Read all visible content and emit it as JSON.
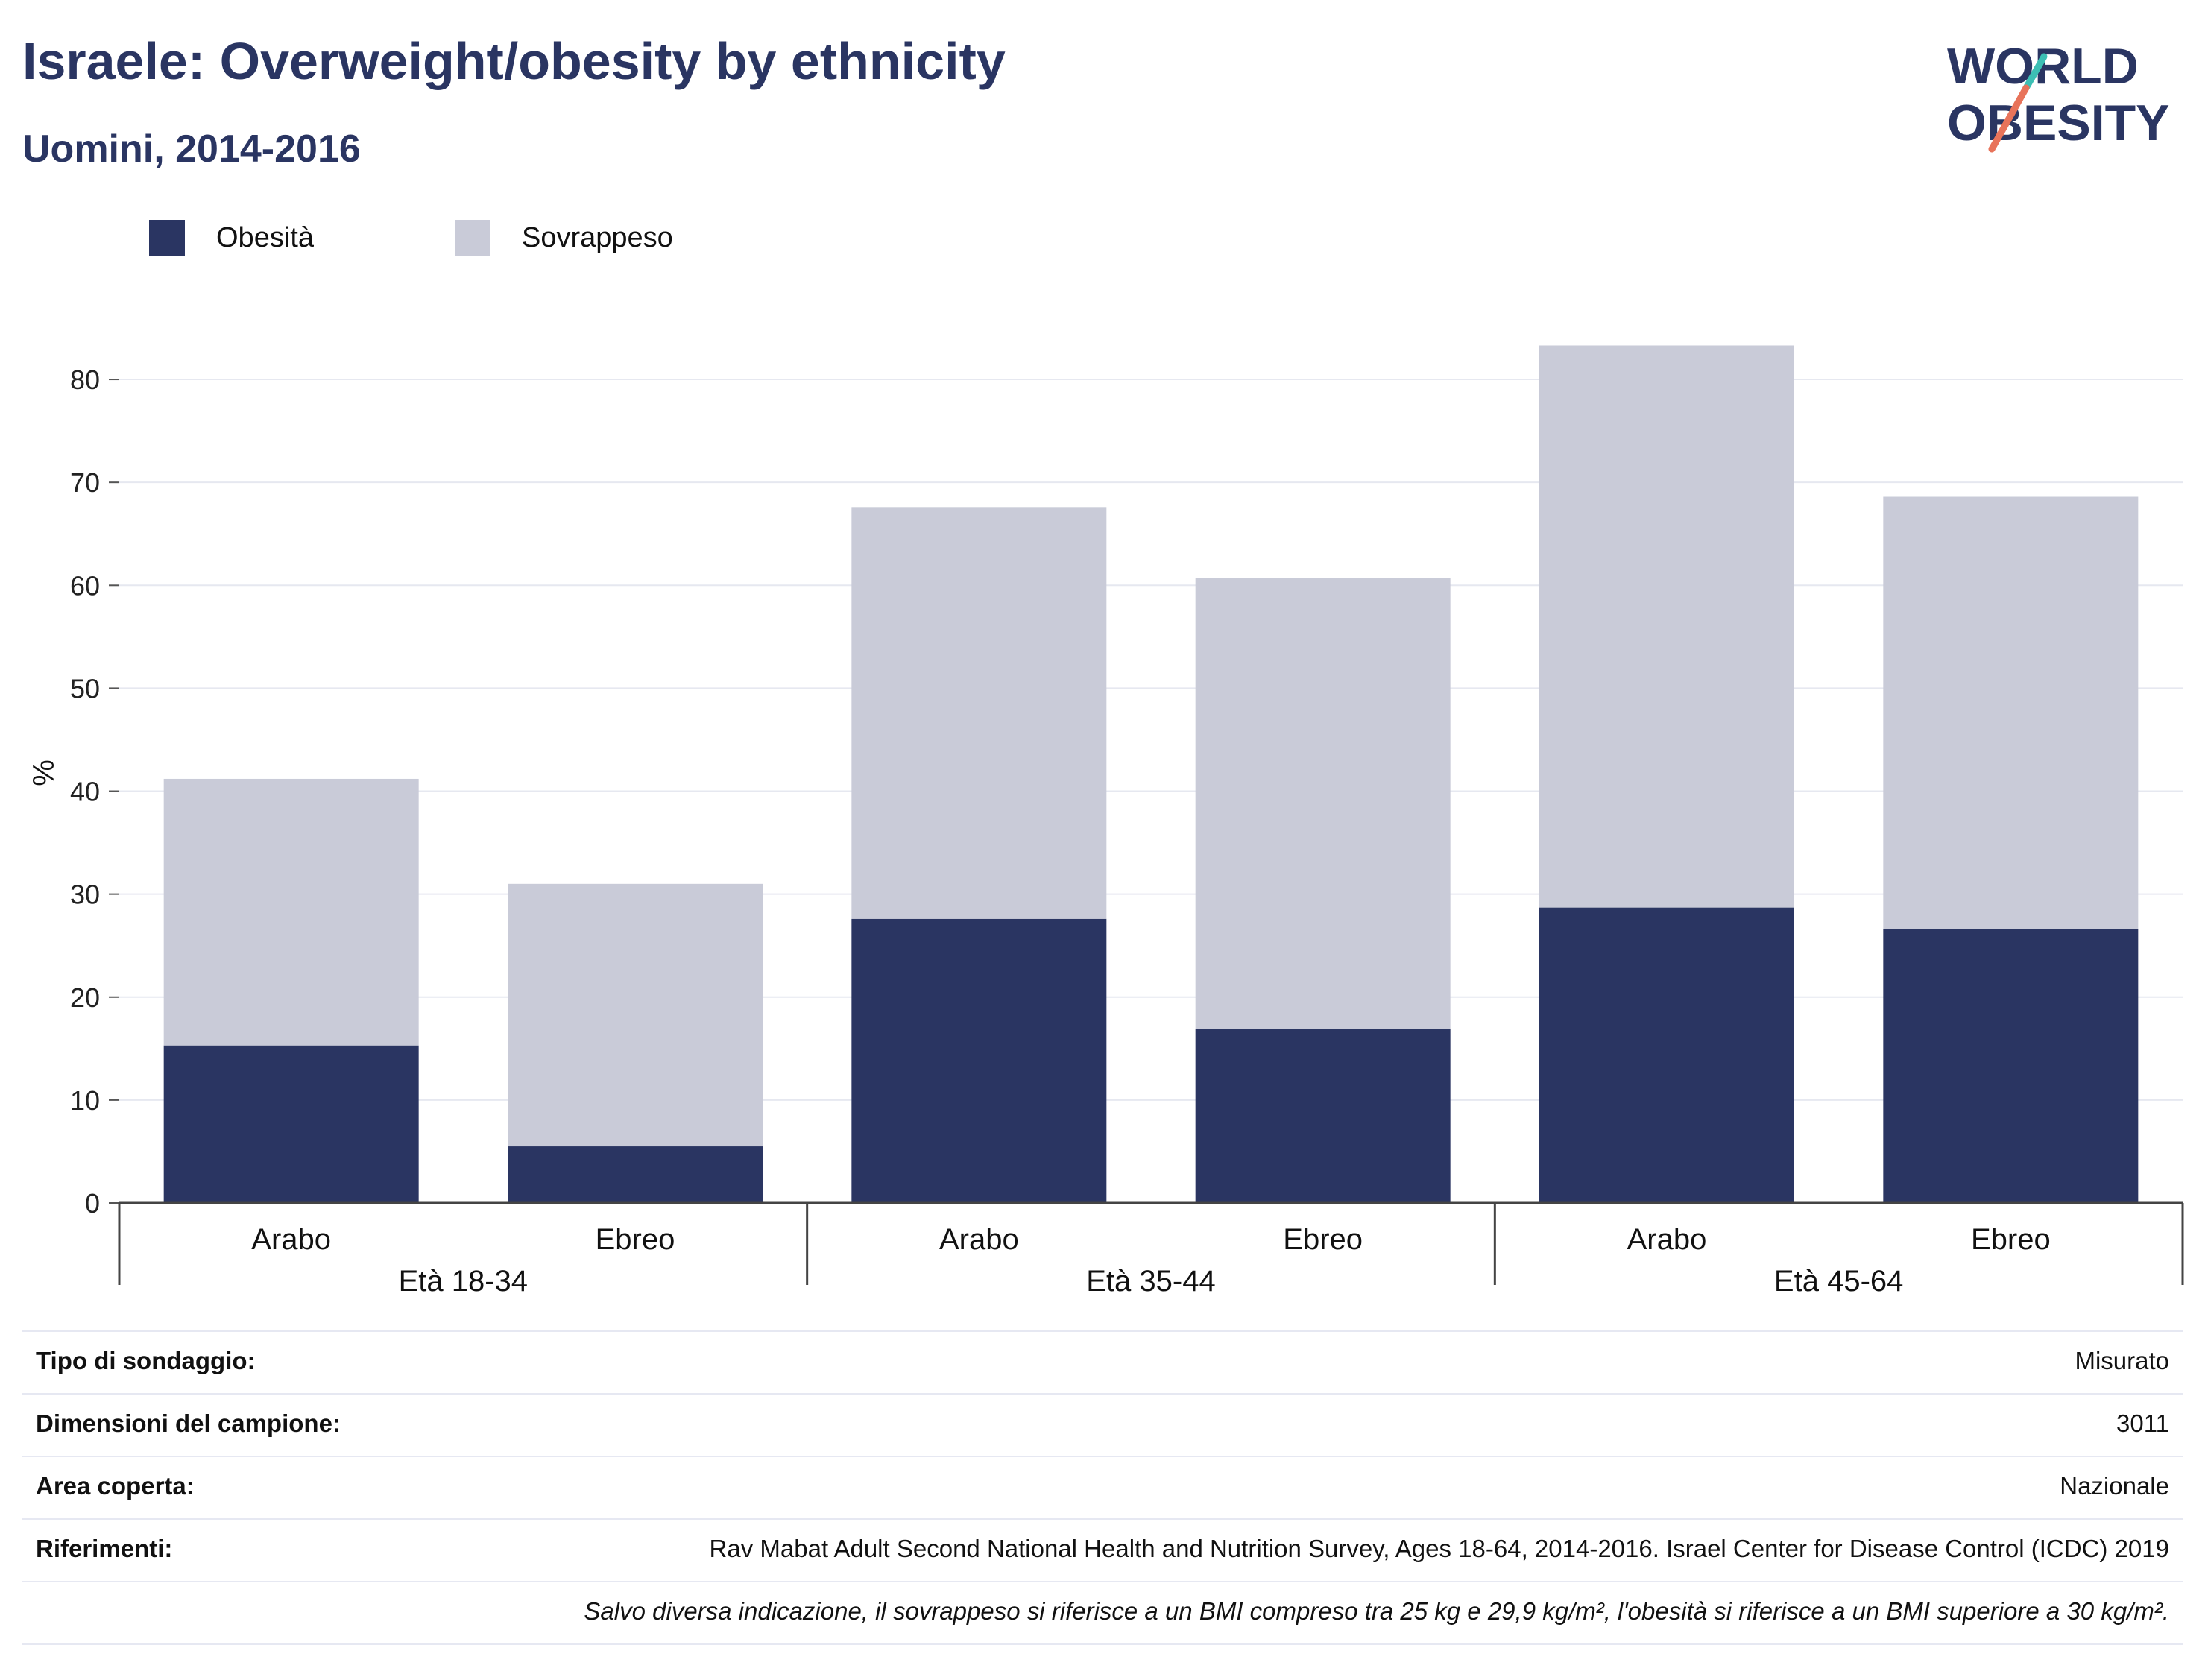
{
  "title": "Israele: Overweight/obesity by ethnicity",
  "subtitle": "Uomini, 2014-2016",
  "logo": {
    "line1": "WORLD",
    "line2": "OBESITY",
    "text_color": "#2a3562",
    "slash_colors": [
      "#3cbfb4",
      "#e8735a"
    ]
  },
  "legend": [
    {
      "label": "Obesità",
      "color": "#2a3562"
    },
    {
      "label": "Sovrappeso",
      "color": "#c9cbd8"
    }
  ],
  "chart_data": {
    "type": "bar",
    "stacked": true,
    "ylabel": "%",
    "ylim": [
      0,
      85
    ],
    "yticks": [
      0,
      10,
      20,
      30,
      40,
      50,
      60,
      70,
      80
    ],
    "grid": true,
    "groups": [
      {
        "label": "Età 18-34",
        "categories": [
          "Arabo",
          "Ebreo"
        ]
      },
      {
        "label": "Età 35-44",
        "categories": [
          "Arabo",
          "Ebreo"
        ]
      },
      {
        "label": "Età 45-64",
        "categories": [
          "Arabo",
          "Ebreo"
        ]
      }
    ],
    "series": [
      {
        "name": "Obesità",
        "color": "#2a3562",
        "values": [
          15.3,
          5.5,
          27.6,
          16.9,
          28.7,
          26.6
        ]
      },
      {
        "name": "Sovrappeso",
        "color": "#c9cbd8",
        "values": [
          25.9,
          25.5,
          40.0,
          43.8,
          54.6,
          42.0
        ]
      }
    ]
  },
  "info": [
    {
      "key": "Tipo di sondaggio:",
      "value": "Misurato"
    },
    {
      "key": "Dimensioni del campione:",
      "value": "3011"
    },
    {
      "key": "Area coperta:",
      "value": "Nazionale"
    },
    {
      "key": "Riferimenti:",
      "value": "Rav Mabat Adult Second National Health and Nutrition Survey, Ages 18-64, 2014-2016. Israel Center for Disease Control (ICDC) 2019"
    }
  ],
  "note": "Salvo diversa indicazione, il sovrappeso si riferisce a un BMI compreso tra 25 kg e 29,9 kg/m², l'obesità si riferisce a un BMI superiore a 30 kg/m²."
}
